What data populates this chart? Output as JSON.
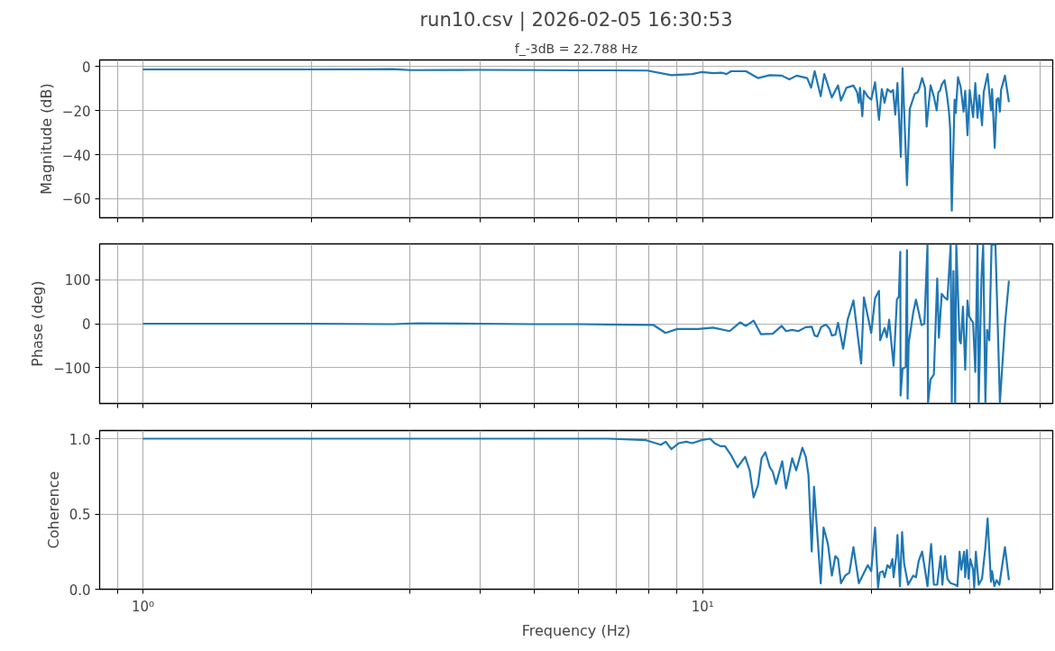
{
  "chart_data": [
    {
      "type": "line",
      "title": "run10.csv | 2026-02-05 16:30:53",
      "subtitle": "f_-3dB = 22.788 Hz",
      "ylabel": "Magnitude (dB)",
      "log": "x",
      "grid": true,
      "tick_labels": "y",
      "xlim": [
        0.837,
        42.2
      ],
      "ylim": [
        -68.6,
        2.9
      ],
      "xticks": [
        {
          "value": 0.9,
          "label": null
        },
        {
          "value": 1,
          "label": null
        },
        {
          "value": 2,
          "label": null
        },
        {
          "value": 3,
          "label": null
        },
        {
          "value": 4,
          "label": null
        },
        {
          "value": 5,
          "label": null
        },
        {
          "value": 6,
          "label": null
        },
        {
          "value": 7,
          "label": null
        },
        {
          "value": 8,
          "label": null
        },
        {
          "value": 9,
          "label": null
        },
        {
          "value": 10,
          "label": null
        },
        {
          "value": 20,
          "label": null
        },
        {
          "value": 30,
          "label": null
        },
        {
          "value": 40,
          "label": null
        }
      ],
      "yticks": [
        {
          "value": -60,
          "label": "−60"
        },
        {
          "value": -40,
          "label": "−40"
        },
        {
          "value": -20,
          "label": "−20"
        },
        0
      ],
      "series": [
        {
          "color": "#1f77b4",
          "x": [
            1,
            1.5,
            2,
            2.5,
            2.8,
            3.0,
            4,
            5,
            6,
            6.79,
            7.96,
            8.79,
            9.58,
            9.94,
            10.44,
            10.83,
            11.03,
            11.24,
            11.95,
            12.55,
            13.18,
            13.84,
            14.28,
            14.72,
            15.37,
            15.62,
            15.85,
            16.25,
            16.49,
            17.01,
            17.45,
            17.66,
            18.06,
            18.59,
            18.87,
            19.01,
            19.1,
            19.28,
            19.41,
            19.72,
            20.0,
            20.32,
            20.65,
            20.89,
            21.13,
            21.38,
            21.68,
            21.88,
            22.08,
            22.28,
            22.59,
            22.75,
            23.17,
            23.44,
            23.93,
            24.21,
            24.38,
            24.66,
            24.95,
            25.12,
            25.53,
            25.88,
            26.18,
            26.36,
            26.55,
            26.73,
            27.04,
            27.29,
            27.54,
            27.67,
            27.86,
            28.18,
            28.31,
            28.58,
            28.91,
            29.24,
            29.44,
            29.72,
            29.99,
            30.41,
            30.69,
            30.97,
            31.19,
            31.55,
            31.77,
            32.28,
            32.73,
            32.88,
            33.24,
            33.5,
            33.73,
            33.96,
            34.12,
            34.67,
            35.24
          ],
          "values": [
            -1.4,
            -1.4,
            -1.4,
            -1.3,
            -1.2,
            -1.7,
            -1.6,
            -1.7,
            -1.8,
            -1.8,
            -1.9,
            -4.0,
            -3.5,
            -2.6,
            -3.1,
            -2.9,
            -3.5,
            -2.2,
            -2.2,
            -5.3,
            -4.0,
            -4.2,
            -5.9,
            -4.2,
            -5.3,
            -9.7,
            -2.2,
            -13.5,
            -3.5,
            -14.1,
            -8.6,
            -15.5,
            -9.7,
            -8.7,
            -11.7,
            -16.5,
            -9.7,
            -22.6,
            -11.0,
            -13.7,
            -15.1,
            -7.2,
            -24.2,
            -10.3,
            -16.5,
            -10.3,
            -11.7,
            -10.7,
            -21.9,
            -7.6,
            -41.0,
            -0.8,
            -53.9,
            -19.2,
            -12.4,
            -11.7,
            -9.9,
            -5.3,
            -9.7,
            -27.3,
            -8.6,
            -13.7,
            -19.9,
            -11.7,
            -11.0,
            -8.3,
            -6.3,
            -12.4,
            -20.5,
            -28.0,
            -65.4,
            -15.1,
            -21.2,
            -4.9,
            -9.7,
            -20.5,
            -11.0,
            -31.2,
            -10.7,
            -23.0,
            -7.6,
            -23.3,
            -13.1,
            -26.7,
            -11.7,
            -3.5,
            -19.9,
            -10.3,
            -36.9,
            -15.1,
            -14.4,
            -20.5,
            -10.7,
            -4.2,
            -16.2
          ]
        }
      ]
    },
    {
      "type": "line",
      "ylabel": "Phase (deg)",
      "log": "x",
      "grid": true,
      "tick_labels": "y",
      "xlim": [
        0.837,
        42.2
      ],
      "ylim": [
        -182,
        182
      ],
      "xticks": [
        {
          "value": 0.9,
          "label": null
        },
        {
          "value": 1,
          "label": null
        },
        {
          "value": 2,
          "label": null
        },
        {
          "value": 3,
          "label": null
        },
        {
          "value": 4,
          "label": null
        },
        {
          "value": 5,
          "label": null
        },
        {
          "value": 6,
          "label": null
        },
        {
          "value": 7,
          "label": null
        },
        {
          "value": 8,
          "label": null
        },
        {
          "value": 9,
          "label": null
        },
        {
          "value": 10,
          "label": null
        },
        {
          "value": 20,
          "label": null
        },
        {
          "value": 30,
          "label": null
        },
        {
          "value": 40,
          "label": null
        }
      ],
      "yticks": [
        {
          "value": -100,
          "label": "−100"
        },
        0,
        100
      ],
      "series": [
        {
          "color": "#1f77b4",
          "x": [
            1,
            2,
            2.8,
            3.1,
            4,
            5,
            6,
            6.79,
            8.17,
            8.58,
            9.01,
            9.82,
            10.44,
            11.17,
            11.66,
            11.95,
            12.33,
            12.71,
            13.34,
            13.84,
            14.09,
            14.45,
            14.82,
            15.28,
            15.66,
            15.85,
            16.03,
            16.29,
            16.6,
            16.86,
            17.01,
            17.26,
            17.45,
            17.82,
            18.16,
            18.59,
            19.19,
            19.41,
            20.0,
            20.32,
            20.65,
            20.75,
            21.13,
            21.33,
            21.53,
            21.93,
            22.23,
            22.41,
            22.54,
            22.57,
            22.75,
            23.05,
            23.17,
            23.23,
            23.33,
            23.77,
            24.04,
            24.6,
            24.89,
            25.21,
            25.27,
            25.53,
            25.88,
            26.24,
            26.42,
            26.73,
            27.04,
            27.36,
            27.73,
            27.86,
            28.05,
            28.25,
            28.38,
            28.77,
            28.91,
            29.17,
            29.44,
            29.72,
            29.92,
            30.41,
            30.69,
            30.97,
            31.12,
            31.48,
            31.7,
            31.99,
            32.21,
            32.51,
            32.81,
            33.34,
            33.96,
            34.67,
            35.24
          ],
          "values": [
            0,
            0,
            -1,
            1,
            0,
            -1,
            -1,
            -2,
            -3,
            -21,
            -12,
            -12,
            -9,
            -17,
            3,
            -5,
            7,
            -24,
            -23,
            -5,
            -17,
            -14,
            -17,
            -8,
            -7,
            -27,
            -29,
            -7,
            -2,
            -12,
            -27,
            -25,
            2,
            -57,
            10,
            53,
            -91,
            60,
            -21,
            58,
            75,
            -38,
            -10,
            -31,
            9,
            -96,
            55,
            62,
            164,
            -164,
            -103,
            -99,
            168,
            -171,
            -45,
            25,
            55,
            -3,
            0,
            180,
            -180,
            -127,
            -116,
            103,
            -32,
            68,
            60,
            55,
            180,
            -180,
            120,
            -180,
            180,
            -38,
            -45,
            39,
            -105,
            53,
            17,
            2,
            -110,
            180,
            -180,
            106,
            180,
            -180,
            -14,
            -38,
            180,
            180,
            -180,
            -2,
            98
          ]
        }
      ]
    },
    {
      "type": "line",
      "xlabel": "Frequency (Hz)",
      "ylabel": "Coherence",
      "log": "x",
      "grid": true,
      "xlim": [
        0.837,
        42.2
      ],
      "ylim": [
        0,
        1.054
      ],
      "xticks": [
        {
          "value": 0.9,
          "label": null
        },
        {
          "value": 1,
          "label": "10⁰"
        },
        {
          "value": 2,
          "label": null
        },
        {
          "value": 3,
          "label": null
        },
        {
          "value": 4,
          "label": null
        },
        {
          "value": 5,
          "label": null
        },
        {
          "value": 6,
          "label": null
        },
        {
          "value": 7,
          "label": null
        },
        {
          "value": 8,
          "label": null
        },
        {
          "value": 9,
          "label": null
        },
        {
          "value": 10,
          "label": "10¹"
        },
        {
          "value": 20,
          "label": null
        },
        {
          "value": 30,
          "label": null
        },
        {
          "value": 40,
          "label": null
        }
      ],
      "yticks": [
        {
          "value": 0,
          "label": "0.0"
        },
        {
          "value": 0.5,
          "label": "0.5"
        },
        {
          "value": 1,
          "label": "1.0"
        }
      ],
      "series": [
        {
          "color": "#1f77b4",
          "x": [
            1,
            3,
            5,
            6.79,
            7.92,
            8.42,
            8.59,
            8.79,
            9.06,
            9.35,
            9.58,
            9.94,
            10.31,
            10.5,
            10.76,
            10.96,
            11.24,
            11.54,
            11.91,
            12.13,
            12.33,
            12.55,
            12.74,
            12.94,
            13.18,
            13.34,
            13.52,
            13.87,
            14.09,
            14.45,
            14.69,
            15.07,
            15.28,
            15.45,
            15.66,
            15.81,
            15.96,
            16.25,
            16.44,
            16.74,
            17.01,
            17.26,
            17.45,
            17.66,
            17.97,
            18.28,
            18.59,
            19.01,
            19.72,
            20.0,
            20.32,
            20.57,
            20.72,
            20.97,
            21.13,
            21.38,
            21.6,
            21.82,
            21.93,
            22.15,
            22.28,
            22.51,
            22.71,
            22.9,
            23.28,
            23.77,
            24.04,
            24.32,
            24.66,
            24.95,
            25.21,
            25.59,
            25.88,
            26.24,
            26.61,
            26.8,
            27.1,
            27.36,
            27.73,
            28.25,
            28.51,
            28.77,
            28.97,
            29.31,
            29.44,
            29.65,
            29.85,
            30.06,
            30.41,
            30.55,
            30.76,
            31.12,
            31.55,
            31.99,
            32.28,
            32.73,
            32.88,
            33.19,
            33.5,
            33.88,
            34.67,
            35.24
          ],
          "values": [
            1.0,
            1.0,
            1.0,
            1.0,
            0.99,
            0.96,
            0.98,
            0.93,
            0.97,
            0.98,
            0.97,
            0.99,
            1.0,
            0.97,
            0.95,
            0.95,
            0.89,
            0.81,
            0.88,
            0.79,
            0.61,
            0.69,
            0.87,
            0.91,
            0.81,
            0.78,
            0.7,
            0.85,
            0.67,
            0.87,
            0.79,
            0.94,
            0.88,
            0.76,
            0.25,
            0.68,
            0.46,
            0.04,
            0.41,
            0.3,
            0.09,
            0.22,
            0.2,
            0.04,
            0.09,
            0.11,
            0.28,
            0.04,
            0.16,
            0.12,
            0.41,
            0.01,
            0.11,
            0.12,
            0.08,
            0.16,
            0.14,
            0.2,
            0.08,
            0.21,
            0.36,
            0.02,
            0.38,
            0.17,
            0.03,
            0.09,
            0.08,
            0.19,
            0.25,
            0.13,
            0.02,
            0.3,
            0.03,
            0.03,
            0.22,
            0.03,
            0.22,
            0.07,
            0.04,
            0.03,
            0.02,
            0.25,
            0.13,
            0.25,
            0.08,
            0.26,
            0.07,
            0.2,
            0.13,
            0.01,
            0.25,
            0.03,
            0.07,
            0.28,
            0.47,
            0.05,
            0.12,
            0.02,
            0.06,
            0.03,
            0.28,
            0.06
          ]
        }
      ]
    }
  ]
}
